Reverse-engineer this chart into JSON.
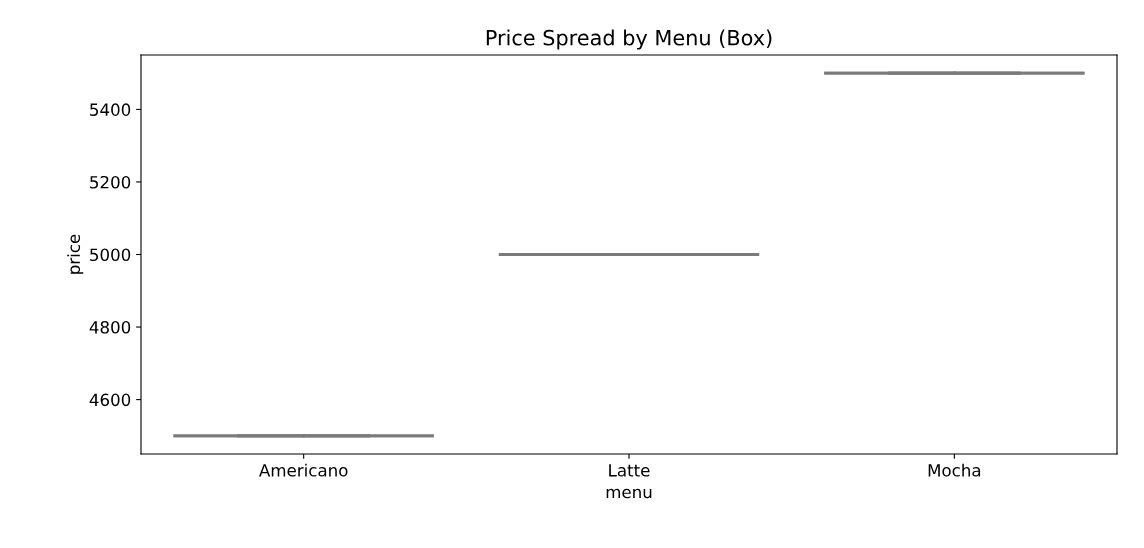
{
  "chart_data": {
    "type": "box",
    "title": "Price Spread by Menu (Box)",
    "xlabel": "menu",
    "ylabel": "price",
    "categories": [
      "Americano",
      "Latte",
      "Mocha"
    ],
    "boxes": [
      {
        "low": 4500,
        "q1": 4500,
        "median": 4500,
        "q3": 4500,
        "high": 4500
      },
      {
        "low": 5000,
        "q1": 5000,
        "median": 5000,
        "q3": 5000,
        "high": 5000
      },
      {
        "low": 5500,
        "q1": 5500,
        "median": 5500,
        "q3": 5500,
        "high": 5500
      }
    ],
    "color": "#7a7a7a",
    "ylim": [
      4450,
      5550
    ],
    "yticks": [
      4600,
      4800,
      5000,
      5200,
      5400
    ]
  }
}
